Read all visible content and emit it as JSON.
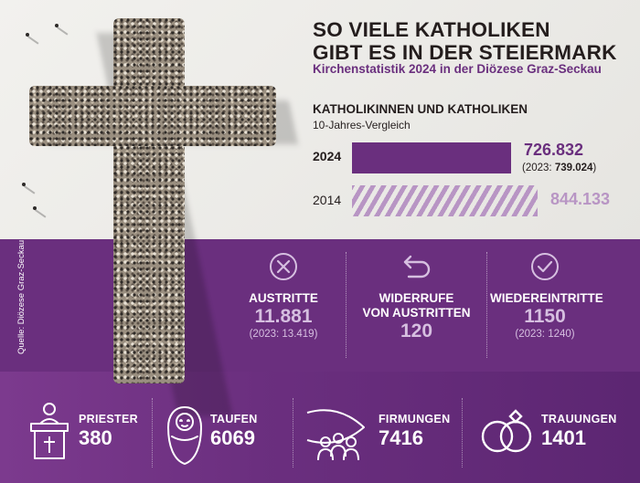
{
  "header": {
    "title_line1": "SO VIELE KATHOLIKEN",
    "title_line2": "GIBT ES IN DER STEIERMARK",
    "subtitle": "Kirchenstatistik 2024 in der Diözese Graz-Seckau"
  },
  "chart_data": {
    "type": "bar",
    "orientation": "horizontal",
    "title": "KATHOLIKINNEN UND KATHOLIKEN",
    "subtitle": "10-Jahres-Vergleich",
    "categories": [
      "2024",
      "2014"
    ],
    "values": [
      726832,
      844133
    ],
    "value_labels": [
      "726.832",
      "844.133"
    ],
    "annotation_2024": "(2023: ",
    "annotation_2024_value": "739.024",
    "annotation_2024_close": ")",
    "xlim": [
      0,
      1000000
    ],
    "grid": false,
    "colors": {
      "2024": "#6a2f7e",
      "2014": "#b895c4"
    }
  },
  "kpis": [
    {
      "icon": "x-circle-icon",
      "label": "AUSTRITTE",
      "value": "11.881",
      "prev": "(2023: 13.419)"
    },
    {
      "icon": "undo-arrow-icon",
      "label_line1": "WIDERRUFE",
      "label_line2": "VON AUSTRITTEN",
      "value": "120"
    },
    {
      "icon": "check-circle-icon",
      "label": "WIEDEREINTRITTE",
      "value": "1150",
      "prev": "(2023: 1240)"
    }
  ],
  "sacraments": [
    {
      "icon": "priest-icon",
      "label": "PRIESTER",
      "value": "380"
    },
    {
      "icon": "baby-icon",
      "label": "TAUFEN",
      "value": "6069"
    },
    {
      "icon": "fish-people-icon",
      "label": "FIRMUNGEN",
      "value": "7416"
    },
    {
      "icon": "wedding-rings-icon",
      "label": "TRAUUNGEN",
      "value": "1401"
    }
  ],
  "source": "Quelle: Diözese Graz-Seckau",
  "colors": {
    "purple": "#6a2f7e",
    "lavender": "#d6bfe0",
    "dark": "#241d1d"
  }
}
